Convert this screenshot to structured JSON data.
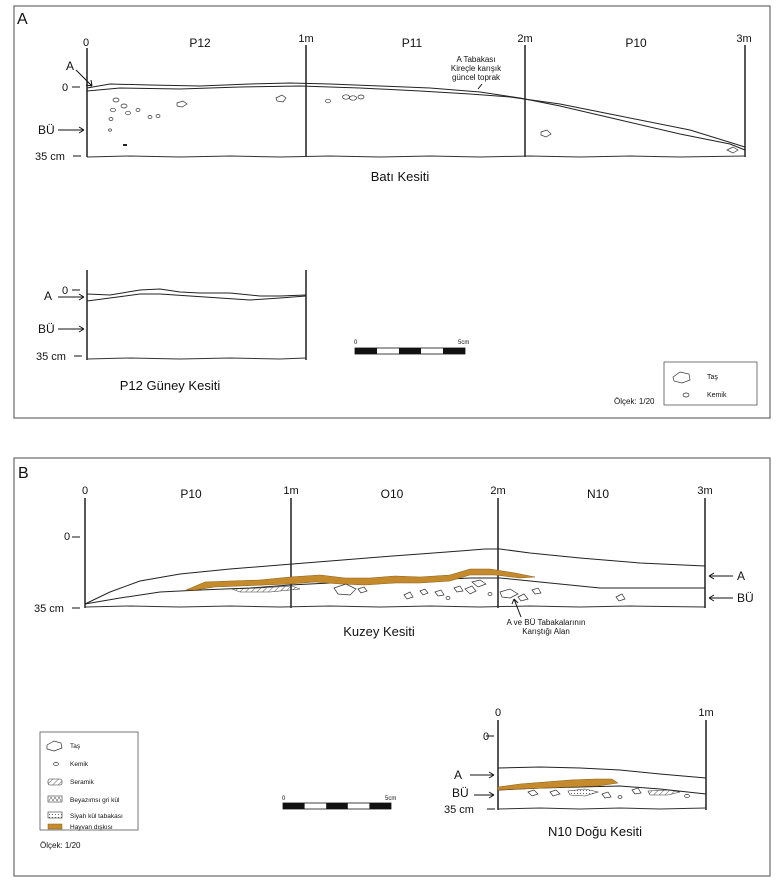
{
  "panel_a": {
    "letter": "A",
    "bati": {
      "ticks": [
        "0",
        "1m",
        "2m",
        "3m"
      ],
      "units": [
        "P12",
        "P11",
        "P10"
      ],
      "label_a": "A",
      "label_bu": "BÜ",
      "depth_top": "0",
      "depth_bottom": "35 cm",
      "note": [
        "A Tabakası",
        "Kireçle karışık",
        "güncel toprak"
      ],
      "title": "Batı Kesiti"
    },
    "p12": {
      "depth_top": "0",
      "label_a": "A",
      "label_bu": "BÜ",
      "depth_bottom": "35 cm",
      "title": "P12 Güney Kesiti"
    },
    "scale": {
      "start": "0",
      "end": "5cm"
    },
    "legend": [
      "Taş",
      "Kemik"
    ],
    "olcek": "Ölçek: 1/20"
  },
  "panel_b": {
    "letter": "B",
    "kuzey": {
      "ticks": [
        "0",
        "1m",
        "2m",
        "3m"
      ],
      "units": [
        "P10",
        "O10",
        "N10"
      ],
      "depth_top": "0",
      "depth_bottom": "35 cm",
      "label_a": "A",
      "label_bu": "BÜ",
      "note": [
        "A ve BÜ Tabakalarının",
        "Karıştığı Alan"
      ],
      "title": "Kuzey Kesiti"
    },
    "n10": {
      "ticks": [
        "0",
        "1m"
      ],
      "depth_top": "0",
      "label_a": "A",
      "label_bu": "BÜ",
      "depth_bottom": "35 cm",
      "title": "N10 Doğu Kesiti"
    },
    "scale": {
      "start": "0",
      "end": "5cm"
    },
    "legend": [
      "Taş",
      "Kemik",
      "Seramik",
      "Beyazımsı gri kül",
      "Siyah kül tabakası",
      "Hayvan dışkısı"
    ],
    "olcek": "Ölçek: 1/20"
  },
  "colors": {
    "dung": "#c48a2c",
    "frame": "#6a6a6a",
    "ink": "#111111"
  }
}
